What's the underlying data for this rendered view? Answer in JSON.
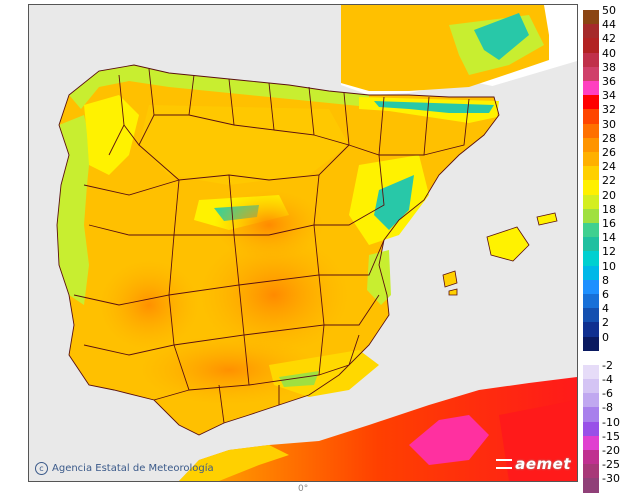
{
  "credit": "Agencia Estatal de Meteorología",
  "logo": "aemet",
  "bottom_mark": "0°",
  "colors": {
    "sea": "#e9e9e9",
    "france": "#ffffff",
    "border": "#5a1010",
    "base_land": "#ffc000",
    "warm_land": "#ff9a00",
    "cool_land": "#fff200",
    "green_land": "#c8ee30",
    "cyan_land": "#28c8a8",
    "hot_magenta": "#ff30a0",
    "africa_red": "#ff2020"
  },
  "legend": {
    "positive": [
      {
        "label": "50",
        "color": "#8b4513"
      },
      {
        "label": "44",
        "color": "#a52a2a"
      },
      {
        "label": "42",
        "color": "#b22222"
      },
      {
        "label": "40",
        "color": "#c0304a"
      },
      {
        "label": "38",
        "color": "#d0406a"
      },
      {
        "label": "36",
        "color": "#ff40c0"
      },
      {
        "label": "34",
        "color": "#ff0000"
      },
      {
        "label": "32",
        "color": "#ff4500"
      },
      {
        "label": "30",
        "color": "#ff7000"
      },
      {
        "label": "28",
        "color": "#ff9400"
      },
      {
        "label": "26",
        "color": "#ffb000"
      },
      {
        "label": "24",
        "color": "#ffd000"
      },
      {
        "label": "22",
        "color": "#fff000"
      },
      {
        "label": "20",
        "color": "#d4ee20"
      },
      {
        "label": "18",
        "color": "#a0e040"
      },
      {
        "label": "16",
        "color": "#40d090"
      },
      {
        "label": "14",
        "color": "#20c0a0"
      },
      {
        "label": "12",
        "color": "#00d0d0"
      },
      {
        "label": "10",
        "color": "#00b8e8"
      },
      {
        "label": "8",
        "color": "#1e90ff"
      },
      {
        "label": "6",
        "color": "#1870d8"
      },
      {
        "label": "4",
        "color": "#1450b0"
      },
      {
        "label": "2",
        "color": "#103090"
      },
      {
        "label": "0",
        "color": "#0a1a60"
      }
    ],
    "negative": [
      {
        "label": "-2",
        "color": "#e6dcf8"
      },
      {
        "label": "-4",
        "color": "#d4c4f4"
      },
      {
        "label": "-6",
        "color": "#c0a8f0"
      },
      {
        "label": "-8",
        "color": "#a880ec"
      },
      {
        "label": "-10",
        "color": "#9850e8"
      },
      {
        "label": "-15",
        "color": "#e040d0"
      },
      {
        "label": "-20",
        "color": "#c03090"
      },
      {
        "label": "-25",
        "color": "#a83878"
      },
      {
        "label": "-30",
        "color": "#904078"
      }
    ]
  }
}
